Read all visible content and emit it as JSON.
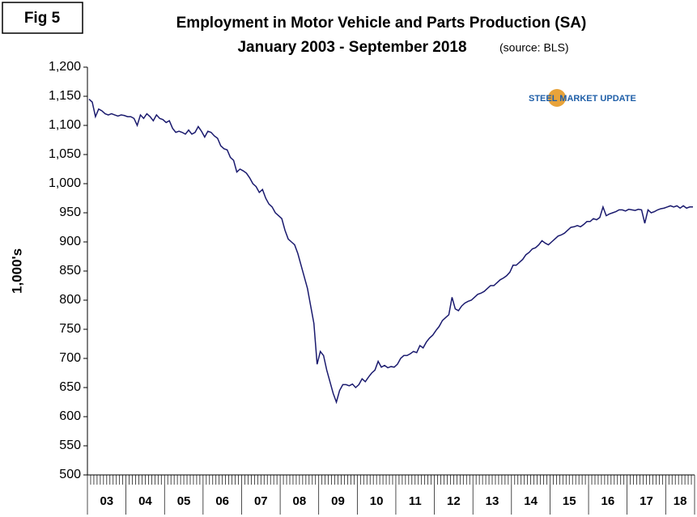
{
  "fig_label": "Fig 5",
  "chart_data": {
    "type": "line",
    "title": "Employment in Motor Vehicle and Parts Production (SA)",
    "subtitle": "January 2003 - September 2018",
    "source": "(source: BLS)",
    "logo": "STEEL MARKET UPDATE",
    "y_label": "1,000's",
    "years": [
      "03",
      "04",
      "05",
      "06",
      "07",
      "08",
      "09",
      "10",
      "11",
      "12",
      "13",
      "14",
      "15",
      "16",
      "17",
      "18"
    ],
    "series": [
      {
        "name": "Employment",
        "color": "#1a1a6e",
        "values": [
          1145,
          1140,
          1115,
          1128,
          1125,
          1120,
          1118,
          1120,
          1118,
          1116,
          1118,
          1117,
          1115,
          1115,
          1112,
          1100,
          1118,
          1112,
          1120,
          1115,
          1108,
          1118,
          1112,
          1110,
          1105,
          1108,
          1095,
          1088,
          1090,
          1088,
          1085,
          1092,
          1085,
          1088,
          1098,
          1090,
          1080,
          1090,
          1088,
          1082,
          1078,
          1065,
          1060,
          1058,
          1045,
          1040,
          1020,
          1025,
          1022,
          1018,
          1010,
          1000,
          995,
          985,
          990,
          975,
          965,
          960,
          950,
          945,
          940,
          920,
          905,
          900,
          895,
          880,
          860,
          840,
          820,
          790,
          760,
          690,
          712,
          705,
          680,
          660,
          640,
          625,
          645,
          655,
          655,
          653,
          656,
          650,
          655,
          665,
          660,
          668,
          675,
          680,
          695,
          685,
          688,
          684,
          686,
          685,
          690,
          700,
          705,
          705,
          708,
          712,
          710,
          722,
          718,
          728,
          735,
          740,
          748,
          755,
          765,
          770,
          775,
          805,
          785,
          782,
          790,
          795,
          798,
          800,
          805,
          810,
          812,
          815,
          820,
          825,
          825,
          830,
          835,
          838,
          842,
          848,
          860,
          860,
          865,
          870,
          878,
          882,
          888,
          890,
          895,
          902,
          898,
          895,
          900,
          905,
          910,
          912,
          915,
          920,
          925,
          926,
          928,
          926,
          930,
          935,
          935,
          940,
          938,
          942,
          960,
          945,
          948,
          950,
          952,
          955,
          955,
          953,
          956,
          955,
          954,
          956,
          955,
          932,
          955,
          950,
          952,
          955,
          957,
          958,
          960,
          962,
          960,
          962,
          958,
          962,
          958,
          960,
          960
        ]
      }
    ],
    "ylim": [
      500,
      1200
    ],
    "yticks": [
      500,
      550,
      600,
      650,
      700,
      750,
      800,
      850,
      900,
      950,
      {
        "value": 1000,
        "label": "1,000"
      },
      {
        "value": 1050,
        "label": "1,050"
      },
      {
        "value": 1100,
        "label": "1,100"
      },
      {
        "value": 1150,
        "label": "1,150"
      },
      {
        "value": 1200,
        "label": "1,200"
      }
    ],
    "grid": false
  }
}
